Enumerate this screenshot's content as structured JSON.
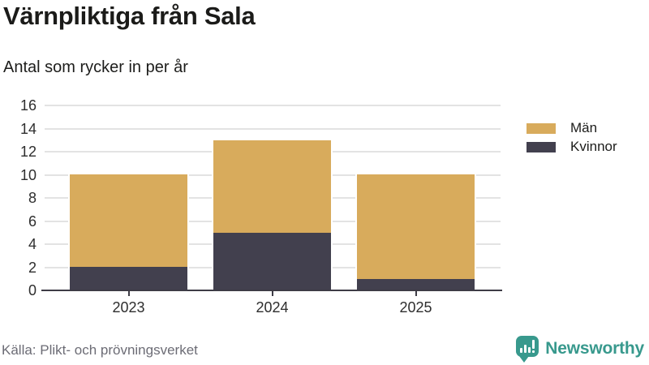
{
  "title": "Värnpliktiga från Sala",
  "subtitle": "Antal som rycker in per år",
  "source": "Källa: Plikt- och prövningsverket",
  "branding": {
    "name": "Newsworthy",
    "color": "#38998d"
  },
  "colors": {
    "men": "#d8ab5c",
    "women": "#42404e",
    "gridline": "#e3e3e3",
    "axis": "#3e3c46",
    "tick_text": "#2e2e2e",
    "muted_text": "#6c6c75"
  },
  "chart_data": {
    "type": "bar",
    "stacked": true,
    "title": "Värnpliktiga från Sala",
    "subtitle": "Antal som rycker in per år",
    "categories": [
      "2023",
      "2024",
      "2025"
    ],
    "series": [
      {
        "name": "Män",
        "color": "#d8ab5c",
        "values": [
          8,
          8,
          9
        ]
      },
      {
        "name": "Kvinnor",
        "color": "#42404e",
        "values": [
          2,
          5,
          1
        ]
      }
    ],
    "stack_bottom_to_top": [
      "Kvinnor",
      "Män"
    ],
    "totals": [
      10,
      13,
      10
    ],
    "xlabel": "",
    "ylabel": "",
    "ylim": [
      0,
      16
    ],
    "ytick_step": 2,
    "grid": true,
    "legend_position": "right",
    "legend_order": [
      "Män",
      "Kvinnor"
    ]
  }
}
